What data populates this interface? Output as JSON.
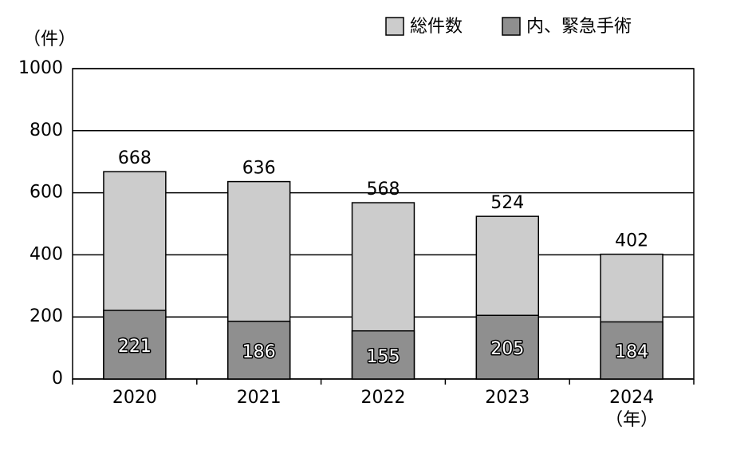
{
  "chart_data": {
    "type": "bar",
    "barmode": "overlay",
    "y_unit": "（件）",
    "x_unit": "（年）",
    "categories": [
      "2020",
      "2021",
      "2022",
      "2023",
      "2024"
    ],
    "series": [
      {
        "name": "総件数",
        "color": "#cccccc",
        "values": [
          668,
          636,
          568,
          524,
          402
        ]
      },
      {
        "name": "内、緊急手術",
        "color": "#8f8f8f",
        "values": [
          221,
          186,
          155,
          205,
          184
        ]
      }
    ],
    "ylim": [
      0,
      1000
    ],
    "yticks": [
      0,
      200,
      400,
      600,
      800,
      1000
    ],
    "grid": true
  }
}
